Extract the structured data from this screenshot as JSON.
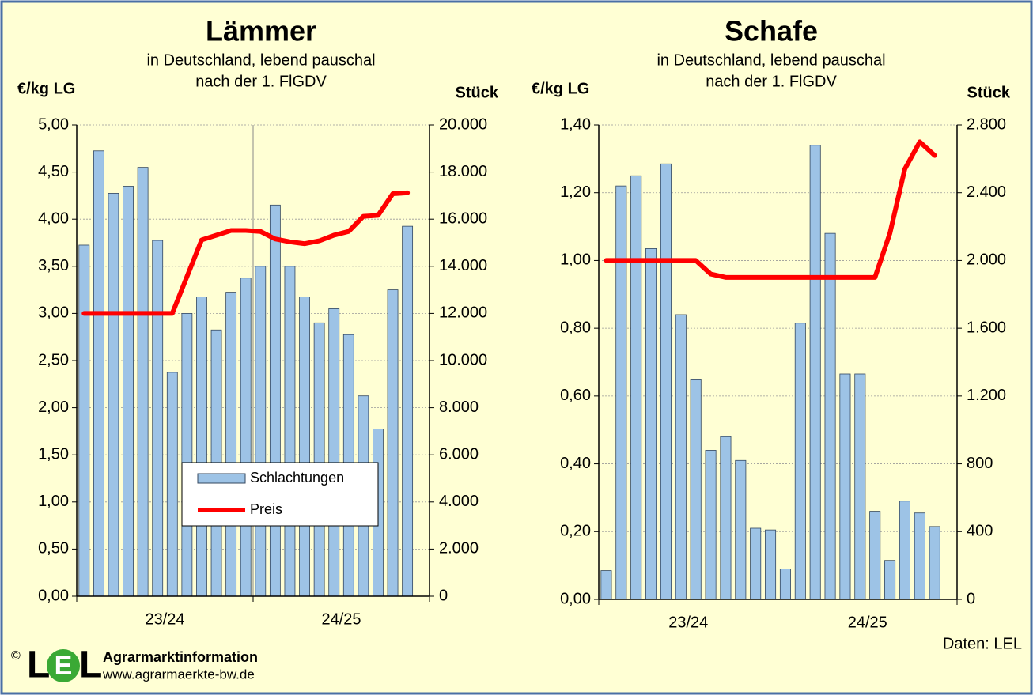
{
  "chart_data": [
    {
      "type": "combo",
      "title": "Lämmer",
      "subtitle": [
        "in Deutschland, lebend pauschal",
        "nach der 1. FlGDV"
      ],
      "y_label": "€/kg LG",
      "y2_label": "Stück",
      "categories": [
        null,
        null,
        null,
        null,
        null,
        null,
        null,
        null,
        null,
        null,
        null,
        null,
        null,
        null,
        null,
        null,
        null,
        null,
        null,
        null,
        null,
        null,
        null,
        null
      ],
      "x_groups": [
        "23/24",
        "24/25"
      ],
      "ylim": [
        0,
        5
      ],
      "yticks": [
        {
          "value": 0,
          "label": "0,00"
        },
        {
          "value": 0.5,
          "label": "0,50"
        },
        {
          "value": 1,
          "label": "1,00"
        },
        {
          "value": 1.5,
          "label": "1,50"
        },
        {
          "value": 2,
          "label": "2,00"
        },
        {
          "value": 2.5,
          "label": "2,50"
        },
        {
          "value": 3,
          "label": "3,00"
        },
        {
          "value": 3.5,
          "label": "3,50"
        },
        {
          "value": 4,
          "label": "4,00"
        },
        {
          "value": 4.5,
          "label": "4,50"
        },
        {
          "value": 5,
          "label": "5,00"
        }
      ],
      "y2lim": [
        0,
        20000
      ],
      "y2ticks": [
        0,
        {
          "value": 2000,
          "label": "2.000"
        },
        {
          "value": 4000,
          "label": "4.000"
        },
        {
          "value": 6000,
          "label": "6.000"
        },
        {
          "value": 8000,
          "label": "8.000"
        },
        {
          "value": 10000,
          "label": "10.000"
        },
        {
          "value": 12000,
          "label": "12.000"
        },
        {
          "value": 14000,
          "label": "14.000"
        },
        {
          "value": 16000,
          "label": "16.000"
        },
        {
          "value": 18000,
          "label": "18.000"
        },
        {
          "value": 20000,
          "label": "20.000"
        }
      ],
      "grid": true,
      "legend": "bottom",
      "series": [
        {
          "name": "Schlachtungen",
          "type": "bar",
          "axis": "y2",
          "color": "#9dc3e6",
          "values": [
            14900,
            18900,
            17100,
            17400,
            18200,
            15100,
            9500,
            12000,
            12700,
            11300,
            12900,
            13500,
            14000,
            16600,
            14000,
            12700,
            11600,
            12200,
            11100,
            8500,
            7100,
            13000,
            15700,
            null
          ]
        },
        {
          "name": "Preis",
          "type": "line",
          "color": "#ff0000",
          "values": [
            3.0,
            3.0,
            3.0,
            3.0,
            3.0,
            3.0,
            3.0,
            3.39,
            3.78,
            3.83,
            3.88,
            3.88,
            3.87,
            3.79,
            3.76,
            3.74,
            3.77,
            3.83,
            3.87,
            4.03,
            4.04,
            4.27,
            4.28,
            null
          ]
        }
      ]
    },
    {
      "type": "combo",
      "title": "Schafe",
      "subtitle": [
        "in Deutschland, lebend pauschal",
        "nach der 1. FlGDV"
      ],
      "y_label": "€/kg LG",
      "y2_label": "Stück",
      "categories": [
        null,
        null,
        null,
        null,
        null,
        null,
        null,
        null,
        null,
        null,
        null,
        null,
        null,
        null,
        null,
        null,
        null,
        null,
        null,
        null,
        null,
        null,
        null,
        null
      ],
      "x_groups": [
        "23/24",
        "24/25"
      ],
      "ylim": [
        0,
        1.4
      ],
      "yticks": [
        {
          "value": 0,
          "label": "0,00"
        },
        {
          "value": 0.2,
          "label": "0,20"
        },
        {
          "value": 0.4,
          "label": "0,40"
        },
        {
          "value": 0.6,
          "label": "0,60"
        },
        {
          "value": 0.8,
          "label": "0,80"
        },
        {
          "value": 1,
          "label": "1,00"
        },
        {
          "value": 1.2,
          "label": "1,20"
        },
        {
          "value": 1.4,
          "label": "1,40"
        }
      ],
      "y2lim": [
        0,
        2800
      ],
      "y2ticks": [
        0,
        400,
        800,
        {
          "value": 1200,
          "label": "1.200"
        },
        {
          "value": 1600,
          "label": "1.600"
        },
        {
          "value": 2000,
          "label": "2.000"
        },
        {
          "value": 2400,
          "label": "2.400"
        },
        {
          "value": 2800,
          "label": "2.800"
        }
      ],
      "grid": true,
      "series": [
        {
          "type": "bar",
          "axis": "y2",
          "color": "#9dc3e6",
          "values": [
            170,
            2440,
            2500,
            2070,
            2570,
            1680,
            1300,
            880,
            960,
            820,
            420,
            410,
            180,
            1630,
            2680,
            2160,
            1330,
            1330,
            520,
            230,
            580,
            510,
            430,
            null
          ]
        },
        {
          "type": "line",
          "color": "#ff0000",
          "values": [
            1.0,
            1.0,
            1.0,
            1.0,
            1.0,
            1.0,
            1.0,
            0.96,
            0.95,
            0.95,
            0.95,
            0.95,
            0.95,
            0.95,
            0.95,
            0.95,
            0.95,
            0.95,
            0.95,
            1.08,
            1.27,
            1.35,
            1.31,
            null
          ]
        }
      ]
    }
  ],
  "footer": {
    "copyright": "©",
    "logo": [
      "L",
      "E",
      "L"
    ],
    "org": "Agrarmarktinformation",
    "url": "www.agrarmaerkte-bw.de",
    "source": "Daten: LEL"
  }
}
